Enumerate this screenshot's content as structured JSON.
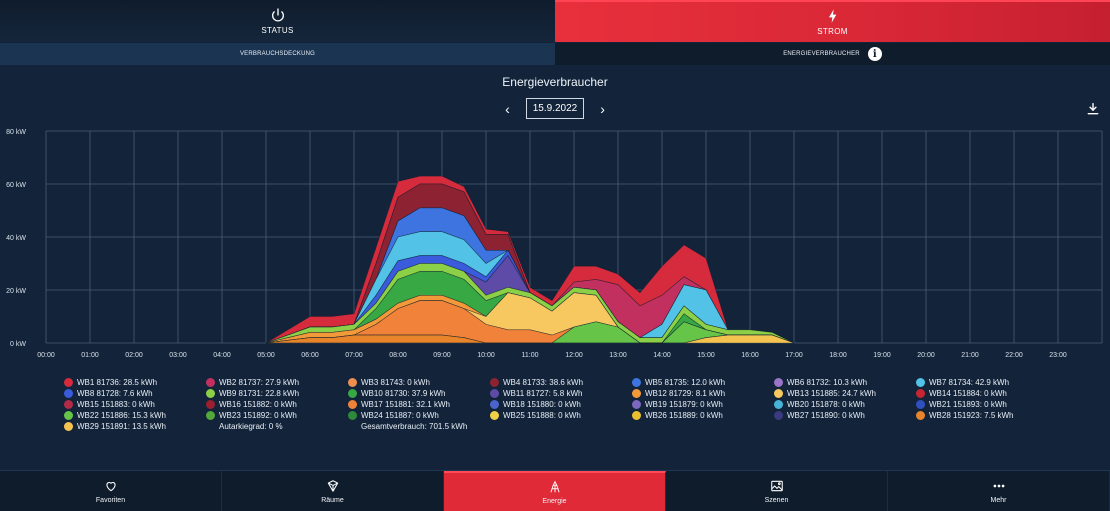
{
  "top_tabs": [
    {
      "label": "STATUS",
      "icon": "power-icon"
    },
    {
      "label": "STROM",
      "icon": "lightning-icon"
    }
  ],
  "sub_tabs": [
    {
      "label": "VERBRAUCHSDECKUNG"
    },
    {
      "label": "ENERGIEVERBRAUCHER",
      "icon": "info-icon"
    }
  ],
  "chart_title": "Energieverbraucher",
  "date_nav": {
    "date": "15.9.2022"
  },
  "bottom_nav": [
    {
      "label": "Favoriten",
      "icon": "heart-icon"
    },
    {
      "label": "Räume",
      "icon": "cube-icon"
    },
    {
      "label": "Energie",
      "icon": "energy-icon"
    },
    {
      "label": "Szenen",
      "icon": "image-icon"
    },
    {
      "label": "Mehr",
      "icon": "more-dots-icon"
    }
  ],
  "legend": [
    {
      "label": "WB1 81736: 28.5 kWh",
      "color": "#d52b3c"
    },
    {
      "label": "WB2 81737: 27.9 kWh",
      "color": "#c2305f"
    },
    {
      "label": "WB3 81743: 0 kWh",
      "color": "#ee8f4f"
    },
    {
      "label": "WB4 81733: 38.6 kWh",
      "color": "#8c2232"
    },
    {
      "label": "WB5 81735: 12.0 kWh",
      "color": "#3d74e0"
    },
    {
      "label": "WB6 81732: 10.3 kWh",
      "color": "#9a74c8"
    },
    {
      "label": "WB7 81734: 42.9 kWh",
      "color": "#52c2e6"
    },
    {
      "label": "WB8 81728: 7.6 kWh",
      "color": "#3a5bdc"
    },
    {
      "label": "WB9 81731: 22.8 kWh",
      "color": "#8cd047"
    },
    {
      "label": "WB10 81730: 37.9 kWh",
      "color": "#37a844"
    },
    {
      "label": "WB11 81727: 5.8 kWh",
      "color": "#5e4ba8"
    },
    {
      "label": "WB12 81729: 8.1 kWh",
      "color": "#f29a3a"
    },
    {
      "label": "WB13 151885: 24.7 kWh",
      "color": "#f7c860"
    },
    {
      "label": "WB14 151884: 0 kWh",
      "color": "#c82432"
    },
    {
      "label": "WB15 151883: 0 kWh",
      "color": "#b22a48"
    },
    {
      "label": "WB16 151882: 0 kWh",
      "color": "#9a2030"
    },
    {
      "label": "WB17 151881: 32.1 kWh",
      "color": "#f0823a"
    },
    {
      "label": "WB18 151880: 0 kWh",
      "color": "#4a64cc"
    },
    {
      "label": "WB19 151879: 0 kWh",
      "color": "#7c68c0"
    },
    {
      "label": "WB20 151878: 0 kWh",
      "color": "#46b4d8"
    },
    {
      "label": "WB21 151893: 0 kWh",
      "color": "#2e50c0"
    },
    {
      "label": "WB22 151886: 15.3 kWh",
      "color": "#66c448"
    },
    {
      "label": "WB23 151892: 0 kWh",
      "color": "#52a83a"
    },
    {
      "label": "WB24 151887: 0 kWh",
      "color": "#2e8a3a"
    },
    {
      "label": "WB25 151888: 0 kWh",
      "color": "#f0d048"
    },
    {
      "label": "WB26 151889: 0 kWh",
      "color": "#e8c030"
    },
    {
      "label": "WB27 151890: 0 kWh",
      "color": "#3a3a80"
    },
    {
      "label": "WB28 151923: 7.5 kWh",
      "color": "#e8842a"
    },
    {
      "label": "WB29 151891: 13.5 kWh",
      "color": "#f5c450"
    }
  ],
  "legend_summary": {
    "autarky": "Autarkiegrad: 0 %",
    "total": "Gesamtverbrauch: 701.5 kWh"
  },
  "chart_data": {
    "type": "area",
    "stacked": true,
    "title": "Energieverbraucher",
    "x": [
      "05:00",
      "05:30",
      "06:00",
      "06:30",
      "07:00",
      "07:30",
      "08:00",
      "08:30",
      "09:00",
      "09:30",
      "10:00",
      "10:30",
      "11:00",
      "11:30",
      "12:00",
      "12:30",
      "13:00",
      "13:30",
      "14:00",
      "14:30",
      "15:00",
      "15:30",
      "16:00",
      "16:30",
      "17:00"
    ],
    "x_ticks": [
      "00:00",
      "01:00",
      "02:00",
      "03:00",
      "04:00",
      "05:00",
      "06:00",
      "07:00",
      "08:00",
      "09:00",
      "10:00",
      "11:00",
      "12:00",
      "13:00",
      "14:00",
      "15:00",
      "16:00",
      "17:00",
      "18:00",
      "19:00",
      "20:00",
      "21:00",
      "22:00",
      "23:00"
    ],
    "y_ticks": [
      "0 kW",
      "20 kW",
      "40 kW",
      "60 kW",
      "80 kW"
    ],
    "ylim": [
      0,
      80
    ],
    "grid": true,
    "series": [
      {
        "name": "WB29 151891: 13.5 kWh",
        "color": "#f5c450",
        "values": [
          0,
          0,
          0,
          0,
          0,
          0,
          0,
          0,
          0,
          0,
          0,
          0,
          0,
          0,
          0,
          0,
          0,
          0,
          0,
          0,
          2,
          3,
          3,
          3,
          0
        ]
      },
      {
        "name": "WB28 151923: 7.5 kWh",
        "color": "#e8842a",
        "values": [
          0,
          1,
          2,
          2,
          3,
          3,
          3,
          3,
          3,
          2,
          0,
          0,
          0,
          0,
          0,
          0,
          0,
          0,
          0,
          0,
          0,
          0,
          0,
          0,
          0
        ]
      },
      {
        "name": "WB22 151886: 15.3 kWh",
        "color": "#66c448",
        "values": [
          0,
          0,
          0,
          0,
          0,
          0,
          0,
          0,
          0,
          0,
          0,
          0,
          0,
          0,
          6,
          8,
          6,
          0,
          0,
          8,
          3,
          0,
          0,
          0,
          0
        ]
      },
      {
        "name": "WB17 151881: 32.1 kWh",
        "color": "#f0823a",
        "values": [
          0,
          0,
          0,
          0,
          0,
          4,
          10,
          13,
          13,
          11,
          7,
          5,
          5,
          3,
          0,
          0,
          0,
          0,
          0,
          0,
          0,
          0,
          0,
          0,
          0
        ]
      },
      {
        "name": "WB13 151885: 24.7 kWh",
        "color": "#f7c860",
        "values": [
          0,
          0,
          0,
          0,
          0,
          0,
          0,
          0,
          0,
          0,
          3,
          14,
          12,
          9,
          13,
          10,
          0,
          0,
          0,
          0,
          0,
          0,
          0,
          0,
          0
        ]
      },
      {
        "name": "WB12 81729: 8.1 kWh",
        "color": "#f29a3a",
        "values": [
          0,
          1,
          2,
          2,
          2,
          2,
          2,
          2,
          2,
          2,
          0,
          0,
          0,
          0,
          0,
          0,
          0,
          0,
          0,
          0,
          0,
          0,
          0,
          0,
          0
        ]
      },
      {
        "name": "WB10 81730: 37.9 kWh",
        "color": "#37a844",
        "values": [
          0,
          0,
          0,
          0,
          0,
          4,
          9,
          9,
          9,
          9,
          6,
          0,
          0,
          0,
          0,
          0,
          0,
          0,
          0,
          3,
          0,
          0,
          0,
          0,
          0
        ]
      },
      {
        "name": "WB9 81731: 22.8 kWh",
        "color": "#8cd047",
        "values": [
          0,
          1,
          2,
          2,
          2,
          2,
          3,
          3,
          3,
          3,
          2,
          2,
          2,
          2,
          2,
          2,
          2,
          2,
          2,
          3,
          2,
          2,
          2,
          1,
          0
        ]
      },
      {
        "name": "WB11 81727: 5.8 kWh",
        "color": "#5e4ba8",
        "values": [
          0,
          0,
          0,
          0,
          0,
          0,
          0,
          0,
          0,
          0,
          5,
          12,
          0,
          0,
          0,
          0,
          0,
          0,
          0,
          0,
          0,
          0,
          0,
          0,
          0
        ]
      },
      {
        "name": "WB8 81728: 7.6 kWh",
        "color": "#3a5bdc",
        "values": [
          0,
          0,
          0,
          0,
          0,
          3,
          4,
          3,
          3,
          3,
          2,
          2,
          0,
          0,
          0,
          0,
          0,
          0,
          0,
          0,
          0,
          0,
          0,
          0,
          0
        ]
      },
      {
        "name": "WB7 81734: 42.9 kWh",
        "color": "#52c2e6",
        "values": [
          0,
          0,
          0,
          0,
          0,
          6,
          9,
          9,
          9,
          9,
          5,
          0,
          0,
          0,
          0,
          0,
          0,
          0,
          5,
          8,
          13,
          0,
          0,
          0,
          0
        ]
      },
      {
        "name": "WB5 81735: 12.0 kWh",
        "color": "#3d74e0",
        "values": [
          0,
          0,
          0,
          0,
          0,
          0,
          6,
          9,
          9,
          9,
          5,
          0,
          0,
          0,
          0,
          0,
          0,
          0,
          0,
          0,
          0,
          0,
          0,
          0,
          0
        ]
      },
      {
        "name": "WB6 81732: 10.3 kWh",
        "color": "#9a74c8",
        "values": [
          0,
          0,
          0,
          0,
          0,
          0,
          0,
          0,
          0,
          0,
          0,
          0,
          0,
          0,
          0,
          0,
          0,
          0,
          0,
          0,
          0,
          0,
          0,
          0,
          0
        ]
      },
      {
        "name": "WB4 81733: 38.6 kWh",
        "color": "#8c2232",
        "values": [
          0,
          0,
          0,
          0,
          0,
          6,
          9,
          9,
          9,
          9,
          6,
          6,
          0,
          0,
          0,
          0,
          0,
          0,
          0,
          0,
          0,
          0,
          0,
          0,
          0
        ]
      },
      {
        "name": "WB2 81737: 27.9 kWh",
        "color": "#c2305f",
        "values": [
          0,
          0,
          0,
          0,
          0,
          0,
          0,
          0,
          0,
          0,
          0,
          0,
          0,
          0,
          2,
          4,
          14,
          12,
          11,
          3,
          0,
          0,
          0,
          0,
          0
        ]
      },
      {
        "name": "WB1 81736: 28.5 kWh",
        "color": "#d52b3c",
        "values": [
          0,
          2,
          4,
          4,
          4,
          6,
          6,
          3,
          3,
          2,
          2,
          1,
          2,
          2,
          6,
          5,
          4,
          5,
          11,
          12,
          12,
          0,
          0,
          0,
          0
        ]
      }
    ]
  }
}
